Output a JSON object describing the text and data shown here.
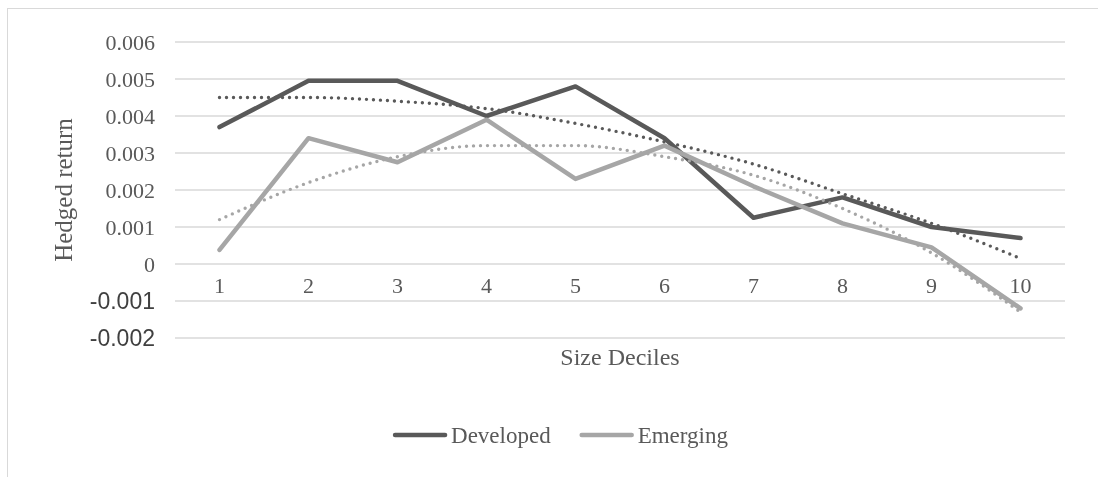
{
  "chart_data": {
    "type": "line",
    "xlabel": "Size Deciles",
    "ylabel": "Hedged return",
    "categories": [
      "1",
      "2",
      "3",
      "4",
      "5",
      "6",
      "7",
      "8",
      "9",
      "10"
    ],
    "series": [
      {
        "name": "Developed",
        "color": "#595959",
        "values": [
          0.0037,
          0.00495,
          0.00495,
          0.004,
          0.0048,
          0.0034,
          0.00125,
          0.0018,
          0.001,
          0.0007
        ]
      },
      {
        "name": "Emerging",
        "color": "#a6a6a6",
        "values": [
          0.00038,
          0.0034,
          0.00275,
          0.0039,
          0.0023,
          0.0032,
          0.0021,
          0.0011,
          0.00045,
          -0.0012
        ]
      },
      {
        "type": "line",
        "color": "#595959",
        "line_style": "dotted",
        "values": [
          0.0045,
          0.0045,
          0.0044,
          0.0042,
          0.0038,
          0.0033,
          0.0027,
          0.0019,
          0.0011,
          0.00015
        ]
      },
      {
        "type": "line",
        "color": "#a6a6a6",
        "line_style": "dotted",
        "values": [
          0.0012,
          0.0022,
          0.0029,
          0.0032,
          0.0032,
          0.0029,
          0.0024,
          0.0015,
          0.0003,
          -0.0013
        ]
      }
    ],
    "ylim": [
      -0.002,
      0.006
    ],
    "yticks": [
      -0.002,
      -0.001,
      0,
      0.001,
      0.002,
      0.003,
      0.004,
      0.005,
      0.006
    ],
    "grid": "y",
    "legend": "bottom"
  }
}
